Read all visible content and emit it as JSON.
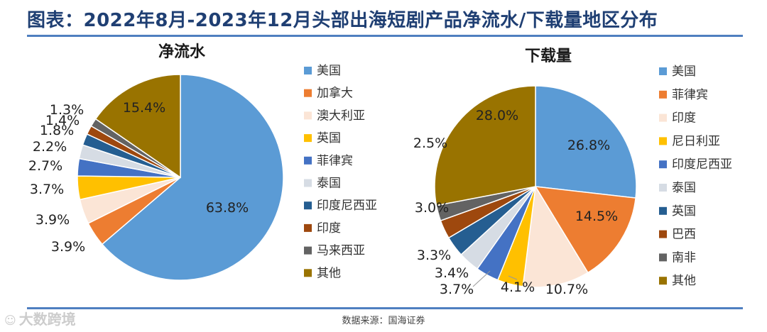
{
  "header": {
    "title": "图表：2022年8月-2023年12月头部出海短剧产品净流水/下载量地区分布"
  },
  "footer": {
    "source": "数据来源：国海证券",
    "watermark": "大数跨境"
  },
  "chart_data": [
    {
      "type": "pie",
      "title": "净流水",
      "categories": [
        "美国",
        "加拿大",
        "澳大利亚",
        "英国",
        "菲律宾",
        "泰国",
        "印度尼西亚",
        "印度",
        "马来西亚",
        "其他"
      ],
      "values": [
        63.8,
        3.9,
        3.9,
        3.7,
        2.7,
        2.2,
        1.8,
        1.4,
        1.3,
        15.4
      ],
      "labels": [
        "63.8%",
        "3.9%",
        "3.9%",
        "3.7%",
        "2.7%",
        "2.2%",
        "1.8%",
        "1.4%",
        "1.3%",
        "15.4%"
      ],
      "colors": [
        "#5b9bd5",
        "#ed7d31",
        "#fbe5d6",
        "#ffc000",
        "#4472c4",
        "#d6dce4",
        "#255e91",
        "#9e480e",
        "#636363",
        "#997300"
      ],
      "legend_position": "right"
    },
    {
      "type": "pie",
      "title": "下载量",
      "categories": [
        "美国",
        "菲律宾",
        "印度",
        "尼日利亚",
        "印度尼西亚",
        "泰国",
        "英国",
        "巴西",
        "南非",
        "其他"
      ],
      "values": [
        26.8,
        14.5,
        10.7,
        4.1,
        3.7,
        3.4,
        3.3,
        3.0,
        2.5,
        28.0
      ],
      "labels": [
        "26.8%",
        "14.5%",
        "10.7%",
        "4.1%",
        "3.7%",
        "3.4%",
        "3.3%",
        "3.0%",
        "2.5%",
        "28.0%"
      ],
      "colors": [
        "#5b9bd5",
        "#ed7d31",
        "#fbe5d6",
        "#ffc000",
        "#4472c4",
        "#d6dce4",
        "#255e91",
        "#9e480e",
        "#636363",
        "#997300"
      ],
      "legend_position": "right"
    }
  ]
}
